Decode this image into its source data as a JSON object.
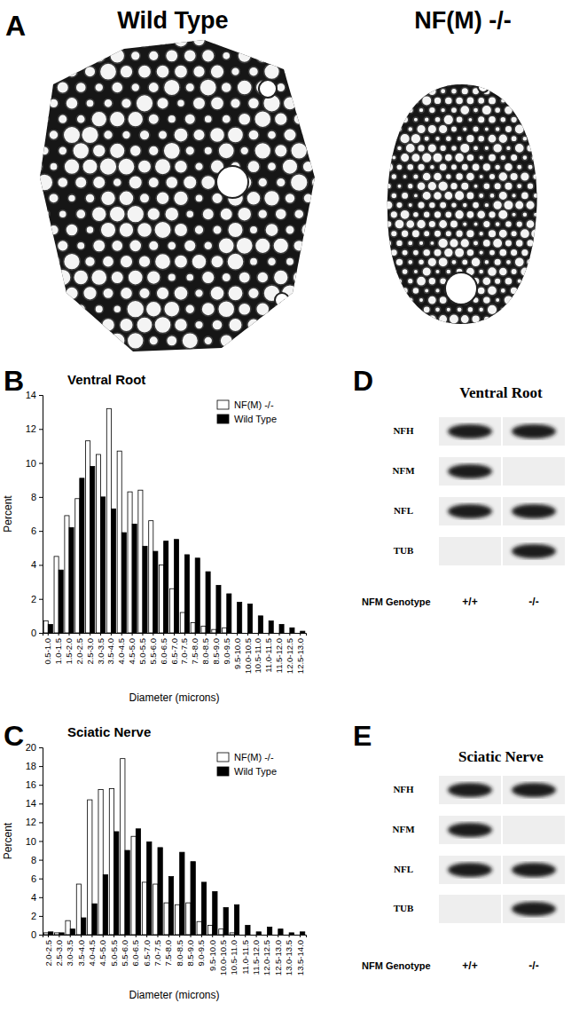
{
  "chart_data": [
    {
      "type": "bar",
      "title": "Ventral Root",
      "xlabel": "Diameter (microns)",
      "ylabel": "Percent",
      "categories": [
        "0.5-1.0",
        "1.0-1.5",
        "1.5-2.0",
        "2.0-2.5",
        "2.5-3.0",
        "3.0-3.5",
        "3.5-4.0",
        "4.0-4.5",
        "4.5-5.0",
        "5.0-5.5",
        "5.5-6.0",
        "6.0-6.5",
        "6.5-7.0",
        "7.0-7.5",
        "7.5-8.0",
        "8.0-8.5",
        "8.5-9.0",
        "9.0-9.5",
        "9.5-10.0",
        "10.0-10.5",
        "10.5-11.0",
        "11.0-11.5",
        "11.5-12.0",
        "12.0-12.5",
        "12.5-13.0"
      ],
      "series": [
        {
          "name": "NF(M) -/-",
          "color": "#ffffff",
          "values": [
            0.7,
            4.5,
            6.9,
            7.9,
            11.3,
            10.5,
            13.2,
            10.7,
            8.3,
            8.4,
            6.6,
            4.0,
            2.6,
            1.2,
            0.6,
            0.4,
            0.2,
            0.3,
            0,
            0,
            0,
            0,
            0,
            0,
            0
          ]
        },
        {
          "name": "Wild Type",
          "color": "#000000",
          "values": [
            0.5,
            3.7,
            6.2,
            9.1,
            9.8,
            8.0,
            7.3,
            5.9,
            6.4,
            5.1,
            4.8,
            5.4,
            5.5,
            4.6,
            4.4,
            3.6,
            2.8,
            2.3,
            1.8,
            1.7,
            1.0,
            0.7,
            0.5,
            0.3,
            0.1
          ]
        }
      ],
      "ylim": [
        0,
        14
      ],
      "yticks": [
        0,
        2,
        4,
        6,
        8,
        10,
        12,
        14
      ],
      "legend": "top-right"
    },
    {
      "type": "bar",
      "title": "Sciatic Nerve",
      "xlabel": "Diameter (microns)",
      "ylabel": "Percent",
      "categories": [
        "2.0-2.5",
        "2.5-3.0",
        "3.0-3.5",
        "3.5-4.0",
        "4.0-4.5",
        "4.5-5.0",
        "5.0-5.5",
        "5.5-6.0",
        "6.0-6.5",
        "6.5-7.0",
        "7.0-7.5",
        "7.5-8.0",
        "8.0-8.5",
        "8.5-9.0",
        "9.0-9.5",
        "9.5-10.0",
        "10.0-10.5",
        "10.5-11.0",
        "11.0-11.5",
        "11.5-12.0",
        "12.0-12.5",
        "12.5-13.0",
        "13.0-13.5",
        "13.5-14.0"
      ],
      "series": [
        {
          "name": "NF(M) -/-",
          "color": "#ffffff",
          "values": [
            0.2,
            0.2,
            1.5,
            5.4,
            14.4,
            15.5,
            15.6,
            18.8,
            10.5,
            5.6,
            5.4,
            3.4,
            3.2,
            3.4,
            1.4,
            1.0,
            0.6,
            0.2,
            0,
            0,
            0,
            0,
            0,
            0
          ]
        },
        {
          "name": "Wild Type",
          "color": "#000000",
          "values": [
            0.3,
            0.2,
            0.6,
            1.8,
            3.3,
            6.4,
            11.0,
            9.0,
            11.3,
            9.9,
            9.3,
            6.2,
            8.8,
            7.8,
            5.6,
            4.6,
            2.9,
            3.2,
            1.0,
            0.3,
            0.8,
            0.6,
            0.2,
            0.3
          ]
        }
      ],
      "ylim": [
        0,
        20
      ],
      "yticks": [
        0,
        2,
        4,
        6,
        8,
        10,
        12,
        14,
        16,
        18,
        20
      ],
      "legend": "top-right"
    }
  ],
  "figure": {
    "chart_labels": [
      "B",
      "C"
    ],
    "micrograph": {
      "label": "A",
      "titles": [
        "Wild Type",
        "NF(M) -/-"
      ]
    },
    "blots": [
      {
        "label": "D",
        "title": "Ventral Root",
        "rows": [
          "NFH",
          "NFM",
          "NFL",
          "TUB"
        ],
        "bands": [
          [
            true,
            true
          ],
          [
            true,
            false
          ],
          [
            true,
            true
          ],
          [
            false,
            true
          ]
        ],
        "genotype_label": "NFM Genotype",
        "lanes": [
          "+/+",
          "-/-"
        ]
      },
      {
        "label": "E",
        "title": "Sciatic Nerve",
        "rows": [
          "NFH",
          "NFM",
          "NFL",
          "TUB"
        ],
        "bands": [
          [
            true,
            true
          ],
          [
            true,
            false
          ],
          [
            true,
            true
          ],
          [
            false,
            true
          ]
        ],
        "genotype_label": "NFM Genotype",
        "lanes": [
          "+/+",
          "-/-"
        ]
      }
    ]
  }
}
